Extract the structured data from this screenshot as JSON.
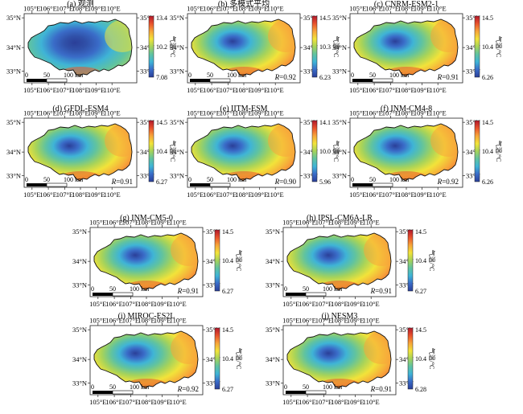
{
  "colormap_stops": [
    "#2b3f98",
    "#3a6cc8",
    "#3fb4d6",
    "#60c3a0",
    "#a6d35a",
    "#f2e33a",
    "#f7a53a",
    "#e9532d",
    "#b2182b"
  ],
  "x_ticks": [
    "105°E",
    "106°E",
    "107°E",
    "108°E",
    "109°E",
    "110°E"
  ],
  "y_ticks": [
    "35°N",
    "34°N",
    "33°N"
  ],
  "colorbar_label": "气温/°C",
  "scalebar_labels": [
    "0",
    "50",
    "100 km"
  ],
  "panels": [
    {
      "title": "(a) 观测",
      "max": "13.4",
      "mid": "10.2",
      "min": "7.08",
      "r": "",
      "obs": true
    },
    {
      "title": "(b) 多模式平均",
      "max": "14.5",
      "mid": "10.3",
      "min": "6.23",
      "r": "=0.92"
    },
    {
      "title": "(c) CNRM-ESM2-1",
      "max": "14.5",
      "mid": "10.4",
      "min": "6.26",
      "r": "=0.91"
    },
    {
      "title": "(d) GFDL-ESM4",
      "max": "14.5",
      "mid": "10.4",
      "min": "6.27",
      "r": "=0.91"
    },
    {
      "title": "(e) IITM-ESM",
      "max": "14.1",
      "mid": "10.0",
      "min": "5.96",
      "r": "=0.90"
    },
    {
      "title": "(f) INM-CM4-8",
      "max": "14.5",
      "mid": "10.4",
      "min": "6.26",
      "r": "=0.92"
    },
    {
      "title": "(g) INM-CM5-0",
      "max": "14.5",
      "mid": "10.4",
      "min": "6.27",
      "r": "=0.91"
    },
    {
      "title": "(h) IPSL-CM6A-LR",
      "max": "14.5",
      "mid": "10.4",
      "min": "6.27",
      "r": "=0.91"
    },
    {
      "title": "(i) MIROC-ES2L",
      "max": "14.5",
      "mid": "10.4",
      "min": "6.27",
      "r": "=0.92"
    },
    {
      "title": "(j) NESM3",
      "max": "14.5",
      "mid": "10.4",
      "min": "6.28",
      "r": "=0.91"
    }
  ]
}
